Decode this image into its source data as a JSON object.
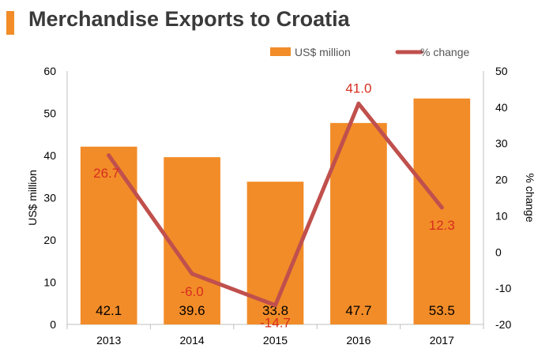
{
  "title": "Merchandise Exports to Croatia",
  "colors": {
    "bar": "#f28c28",
    "line": "#c0504d",
    "accent": "#f28c28",
    "text": "#3a3a3a",
    "lineLabel": "#d62e1f"
  },
  "chart_data": {
    "type": "bar",
    "categories": [
      "2013",
      "2014",
      "2015",
      "2016",
      "2017"
    ],
    "series": [
      {
        "name": "US$ million",
        "type": "bar",
        "axis": "left",
        "values": [
          42.1,
          39.6,
          33.8,
          47.7,
          53.5
        ],
        "labels": [
          "42.1",
          "39.6",
          "33.8",
          "47.7",
          "53.5"
        ]
      },
      {
        "name": "% change",
        "type": "line",
        "axis": "right",
        "values": [
          26.7,
          -6.0,
          -14.7,
          41.0,
          12.3
        ],
        "labels": [
          "26.7",
          "-6.0",
          "-14.7",
          "41.0",
          "12.3"
        ]
      }
    ],
    "ylabel": "US$ million",
    "y2label": "% change",
    "ylim": [
      0,
      60
    ],
    "y2lim": [
      -20,
      50
    ],
    "yticks": [
      "0",
      "10",
      "20",
      "30",
      "40",
      "50",
      "60"
    ],
    "y2ticks": [
      "-20",
      "-10",
      "0",
      "10",
      "20",
      "30",
      "40",
      "50"
    ],
    "legend": "top",
    "grid": false
  }
}
